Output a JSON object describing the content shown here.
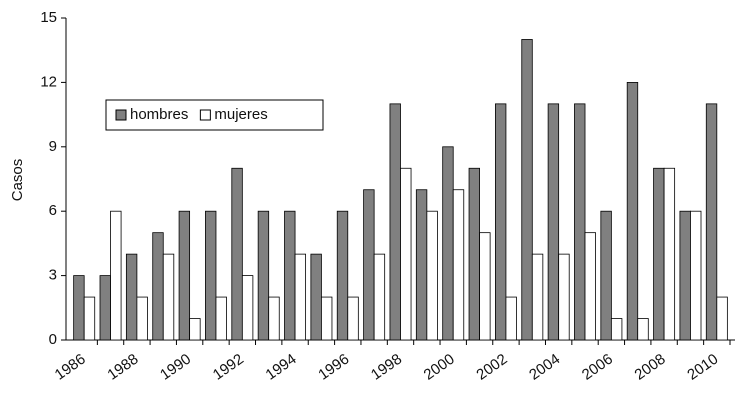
{
  "chart_data": {
    "type": "bar",
    "y_label": "Casos",
    "categories": [
      "1986",
      null,
      "1988",
      null,
      "1990",
      null,
      "1992",
      null,
      "1994",
      null,
      "1996",
      null,
      "1998",
      null,
      "2000",
      null,
      "2002",
      null,
      "2004",
      null,
      "2006",
      null,
      "2008",
      null,
      "2010"
    ],
    "series": [
      {
        "name": "hombres",
        "color": "#808080",
        "values": [
          3,
          3,
          4,
          5,
          6,
          6,
          8,
          6,
          6,
          4,
          6,
          7,
          11,
          7,
          9,
          8,
          11,
          14,
          11,
          11,
          6,
          12,
          8,
          6,
          11
        ]
      },
      {
        "name": "mujeres",
        "color": "#ffffff",
        "values": [
          2,
          6,
          2,
          4,
          1,
          2,
          3,
          2,
          4,
          2,
          2,
          4,
          8,
          6,
          7,
          5,
          2,
          4,
          4,
          5,
          1,
          1,
          8,
          6,
          2
        ]
      }
    ],
    "ylim": [
      0,
      15
    ],
    "yticks": [
      0,
      3,
      6,
      9,
      12,
      15
    ],
    "grid": false,
    "legend": "upper left"
  }
}
